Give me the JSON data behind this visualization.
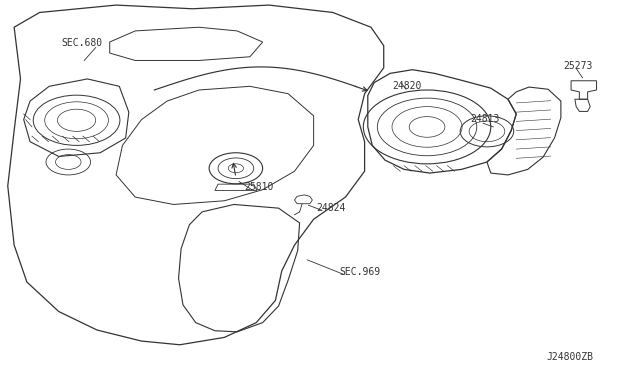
{
  "bg_color": "#ffffff",
  "diagram_code": "J24800ZB",
  "line_color": "#333333",
  "text_color": "#333333",
  "font_size": 7,
  "labels": {
    "SEC680": "SEC.680",
    "24820": "24820",
    "24813": "24813",
    "25273": "25273",
    "25810": "25810",
    "24824": "24824",
    "SEC969": "SEC.969"
  }
}
